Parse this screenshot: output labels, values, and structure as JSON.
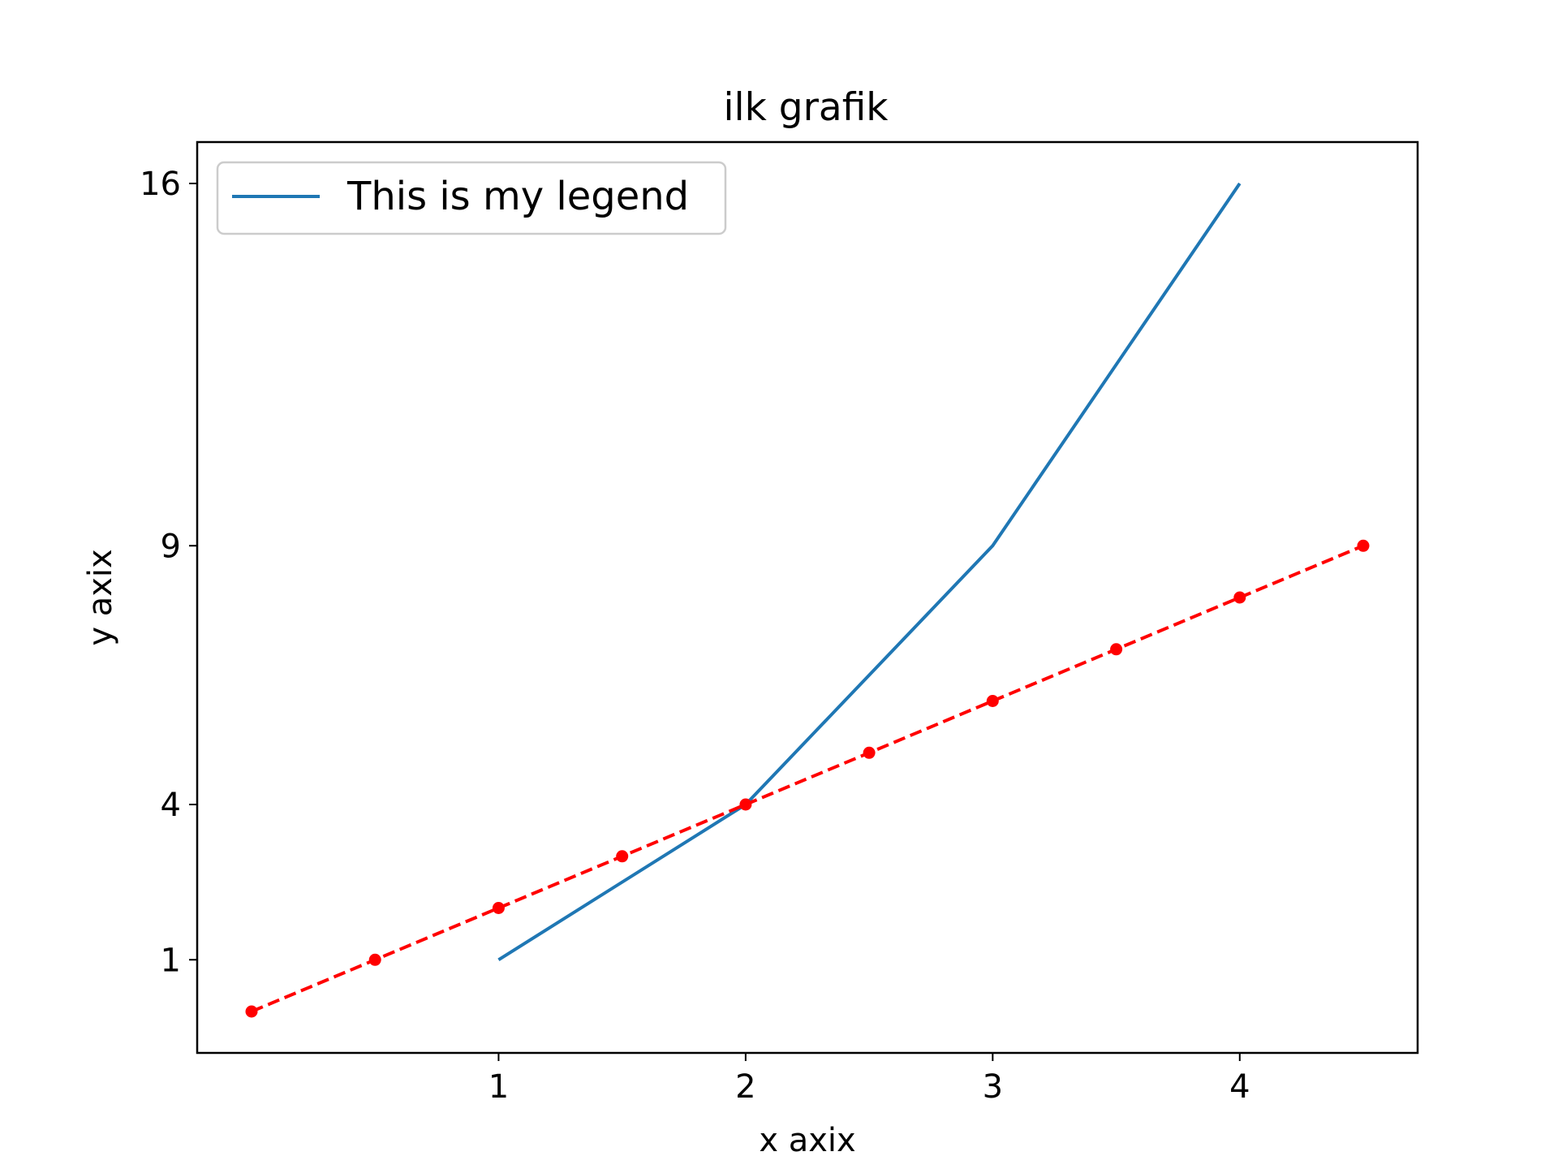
{
  "chart_data": {
    "type": "line",
    "title": "ilk grafik",
    "xlabel": "x axix",
    "ylabel": "y axix",
    "xlim": [
      -0.22,
      4.72
    ],
    "ylim": [
      -0.8,
      16.8
    ],
    "x_ticks": [
      1,
      2,
      3,
      4
    ],
    "y_ticks": [
      1,
      4,
      9,
      16
    ],
    "grid": false,
    "legend": {
      "placement": "upper-left",
      "entries": [
        "This is my legend"
      ]
    },
    "series": [
      {
        "name": "This is my legend",
        "style": "solid",
        "color": "#1f77b4",
        "marker": "none",
        "x": [
          1,
          2,
          3,
          4
        ],
        "y": [
          1,
          4,
          9,
          16
        ]
      },
      {
        "style": "dashed",
        "color": "#ff0000",
        "marker": "circle",
        "x": [
          0,
          0.5,
          1,
          1.5,
          2,
          2.5,
          3,
          3.5,
          4,
          4.5
        ],
        "y": [
          0,
          1,
          2,
          3,
          4,
          5,
          6,
          7,
          8,
          9
        ]
      }
    ]
  }
}
